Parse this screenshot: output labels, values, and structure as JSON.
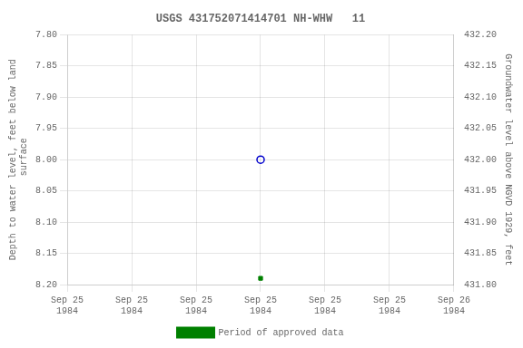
{
  "chart_data": {
    "type": "scatter",
    "title": "USGS 431752071414701 NH-WHW   11",
    "y_label": "Depth to water level, feet below land\n surface",
    "y2_label": "Groundwater level above NGVD 1929, feet",
    "categories": [
      "Sep 25\n1984",
      "Sep 25\n1984",
      "Sep 25\n1984",
      "Sep 25\n1984",
      "Sep 25\n1984",
      "Sep 25\n1984",
      "Sep 26\n1984"
    ],
    "series": [
      {
        "color": "#0000cc",
        "marker": "open_circle",
        "line_style": "none",
        "values": [
          null,
          null,
          null,
          8.0,
          null,
          null,
          null
        ]
      },
      {
        "name": "Period of approved data",
        "color": "#008000",
        "marker": "square",
        "line_style": "none",
        "values": [
          null,
          null,
          null,
          8.19,
          null,
          null,
          null
        ]
      }
    ],
    "ylim": [
      8.2,
      7.8
    ],
    "yticks": [
      {
        "value": 7.8,
        "label": "7.80"
      },
      {
        "value": 7.85,
        "label": "7.85"
      },
      {
        "value": 7.9,
        "label": "7.90"
      },
      {
        "value": 7.95,
        "label": "7.95"
      },
      {
        "value": 8.0,
        "label": "8.00"
      },
      {
        "value": 8.05,
        "label": "8.05"
      },
      {
        "value": 8.1,
        "label": "8.10"
      },
      {
        "value": 8.15,
        "label": "8.15"
      },
      {
        "value": 8.2,
        "label": "8.20"
      }
    ],
    "y2lim": [
      431.8,
      432.2
    ],
    "y2ticks": [
      {
        "value": 432.2,
        "label": "432.20"
      },
      {
        "value": 432.15,
        "label": "432.15"
      },
      {
        "value": 432.1,
        "label": "432.10"
      },
      {
        "value": 432.05,
        "label": "432.05"
      },
      {
        "value": 432.0,
        "label": "432.00"
      },
      {
        "value": 431.95,
        "label": "431.95"
      },
      {
        "value": 431.9,
        "label": "431.90"
      },
      {
        "value": 431.85,
        "label": "431.85"
      },
      {
        "value": 431.8,
        "label": "431.80"
      }
    ],
    "grid": true,
    "legend": "bottom"
  }
}
